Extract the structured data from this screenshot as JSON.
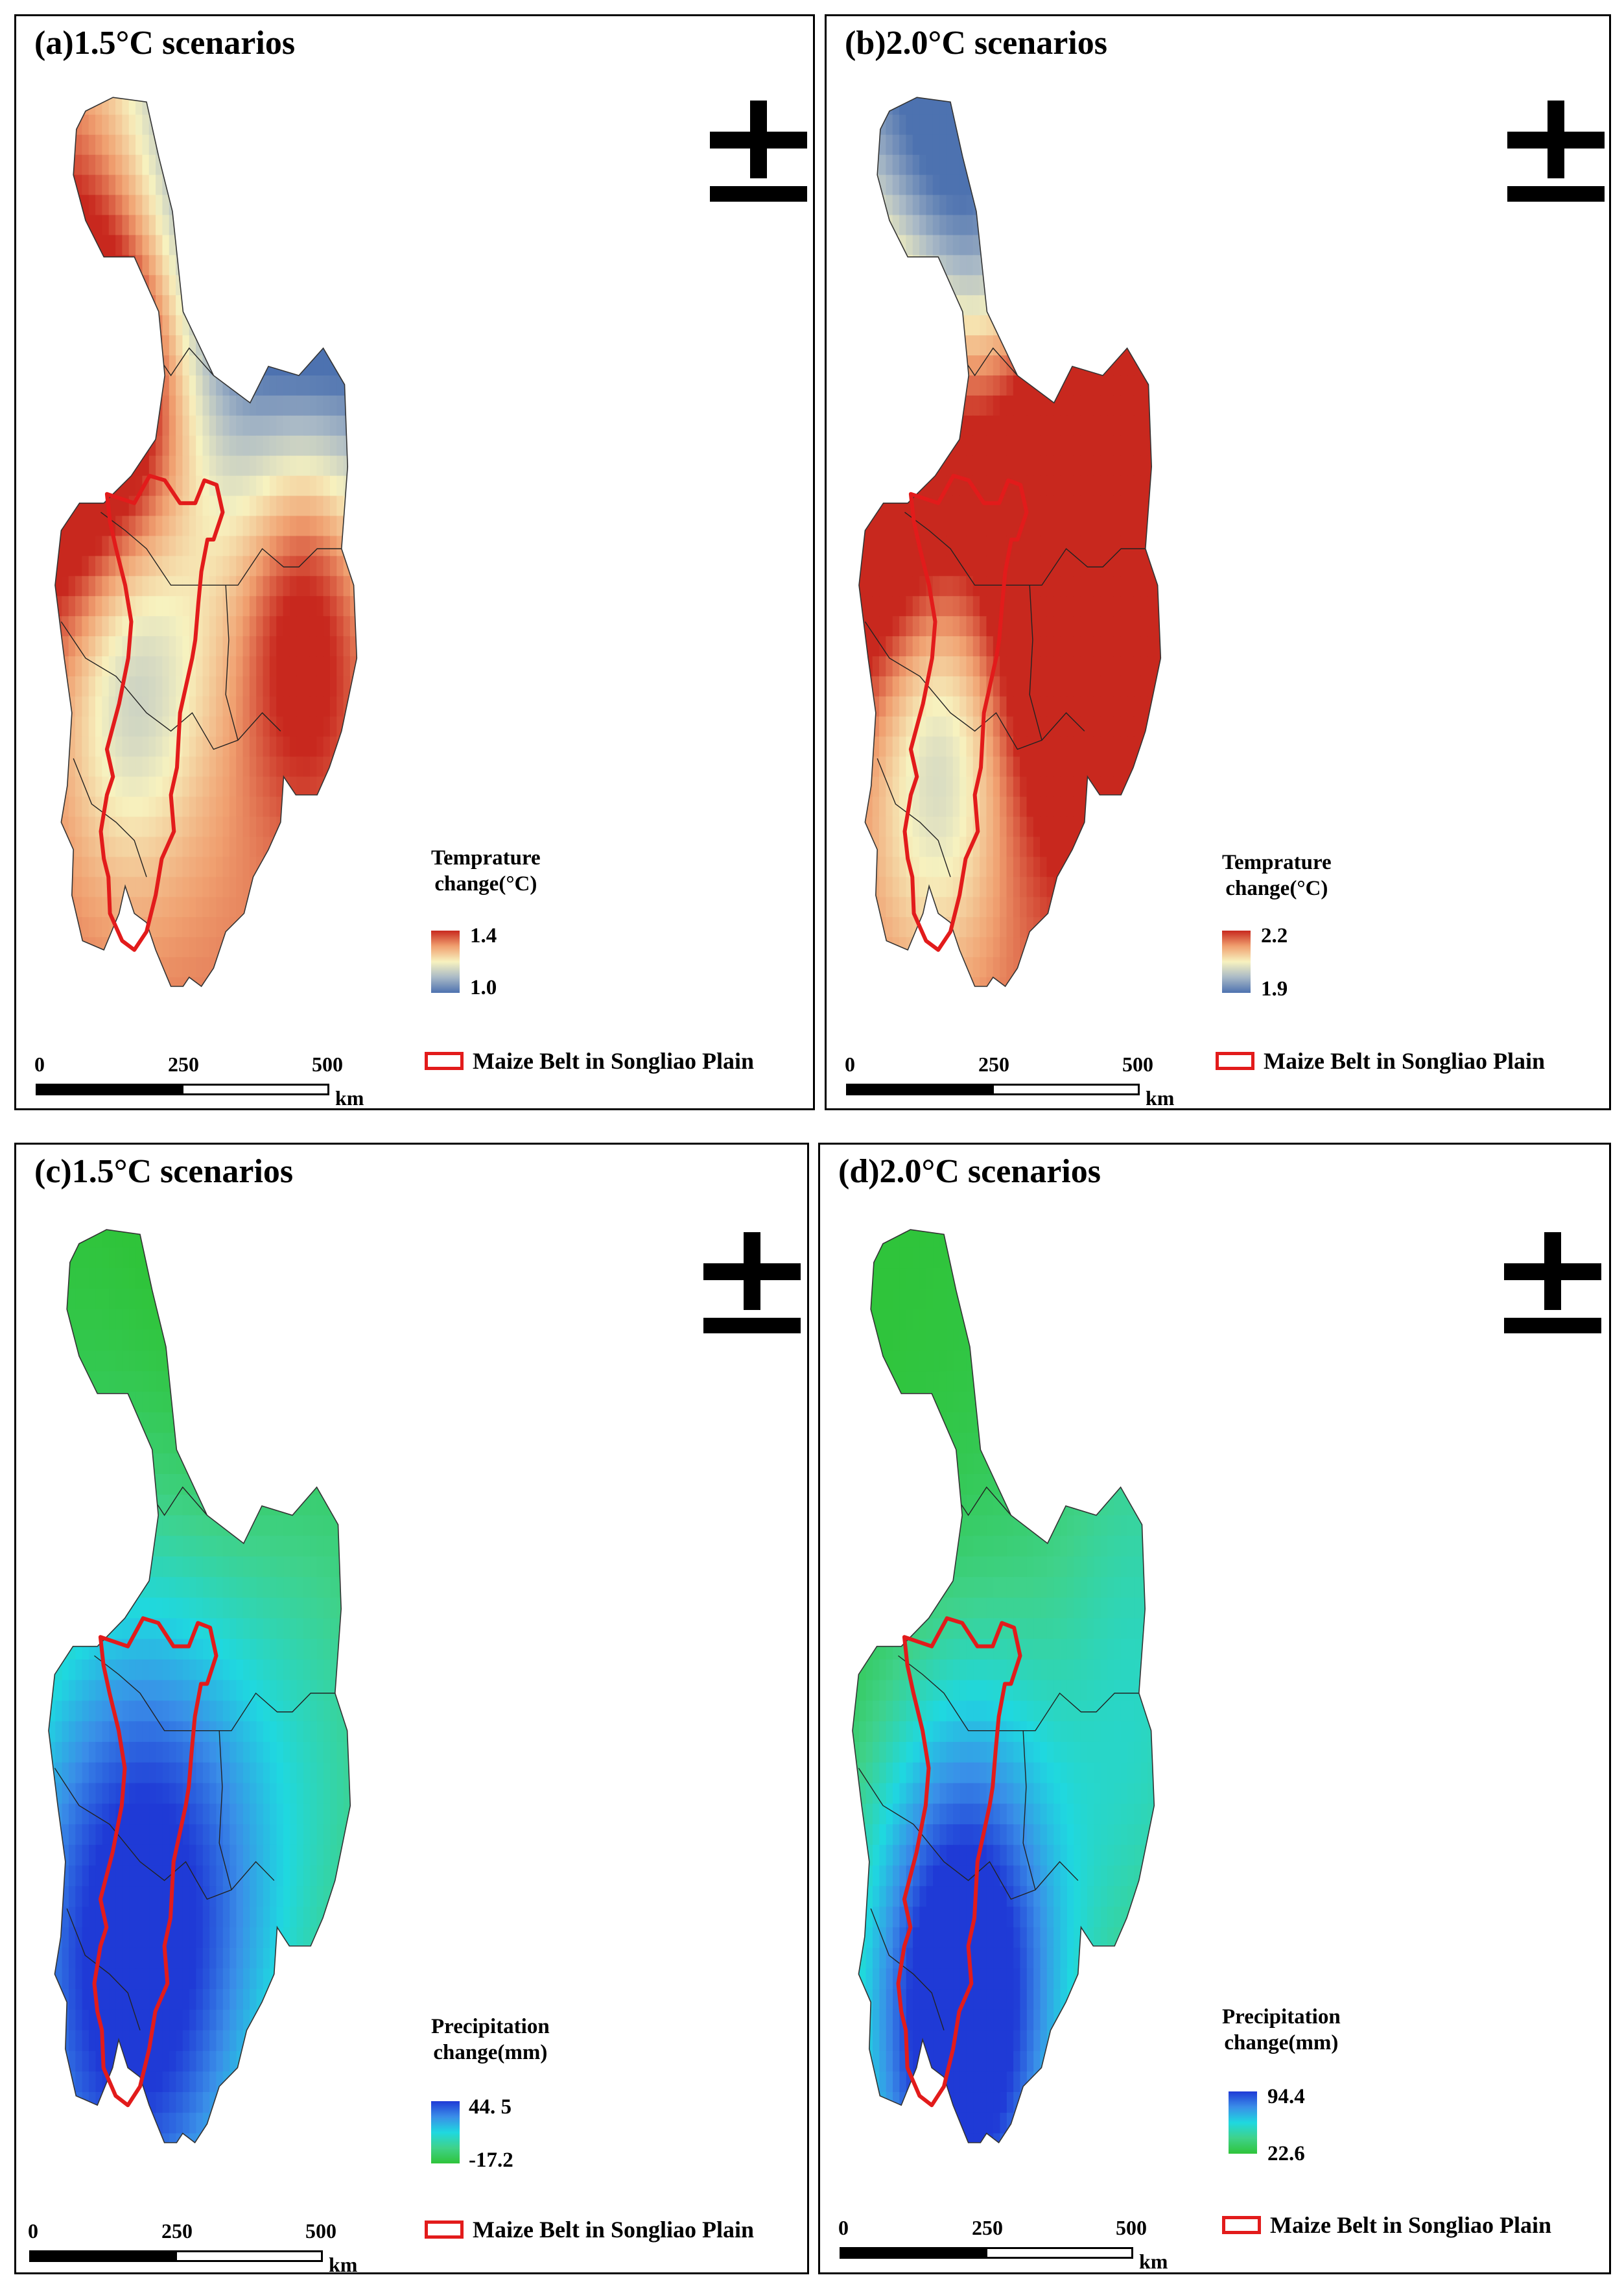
{
  "figure": {
    "unit_km": "km",
    "scale_ticks": [
      "0",
      "250",
      "500"
    ],
    "belt_label": "Maize Belt in Songliao Plain",
    "belt_color": "#e21b1b",
    "north_arrow": "north-arrow-icon"
  },
  "panels": [
    {
      "title": "(a)1.5°C scenarios",
      "legend_title_1": "Temprature",
      "legend_title_2": "change(°C)",
      "legend_max": "1.4",
      "legend_min": "1.0",
      "ramp_colors": [
        "#c8281e",
        "#f0a070",
        "#f7f2bf",
        "#a9b9c6",
        "#4d72b0"
      ],
      "variable": "temperature"
    },
    {
      "title": "(b)2.0°C scenarios",
      "legend_title_1": "Temprature",
      "legend_title_2": "change(°C)",
      "legend_max": "2.2",
      "legend_min": "1.9",
      "ramp_colors": [
        "#c8281e",
        "#f0a070",
        "#f7f2bf",
        "#a9b9c6",
        "#4d72b0"
      ],
      "variable": "temperature"
    },
    {
      "title": "(c)1.5°C scenarios",
      "legend_title_1": "Precipitation",
      "legend_title_2": "change(mm)",
      "legend_max": "44. 5",
      "legend_min": "-17.2",
      "ramp_colors": [
        "#1f3ad6",
        "#3a8ee8",
        "#1fd8e0",
        "#3fd28a",
        "#2fc43a"
      ],
      "variable": "precipitation"
    },
    {
      "title": "(d)2.0°C scenarios",
      "legend_title_1": "Precipitation",
      "legend_title_2": "change(mm)",
      "legend_max": "94.4",
      "legend_min": "22.6",
      "ramp_colors": [
        "#1f3ad6",
        "#3a8ee8",
        "#1fd8e0",
        "#3fd28a",
        "#2fc43a"
      ],
      "variable": "precipitation"
    }
  ]
}
